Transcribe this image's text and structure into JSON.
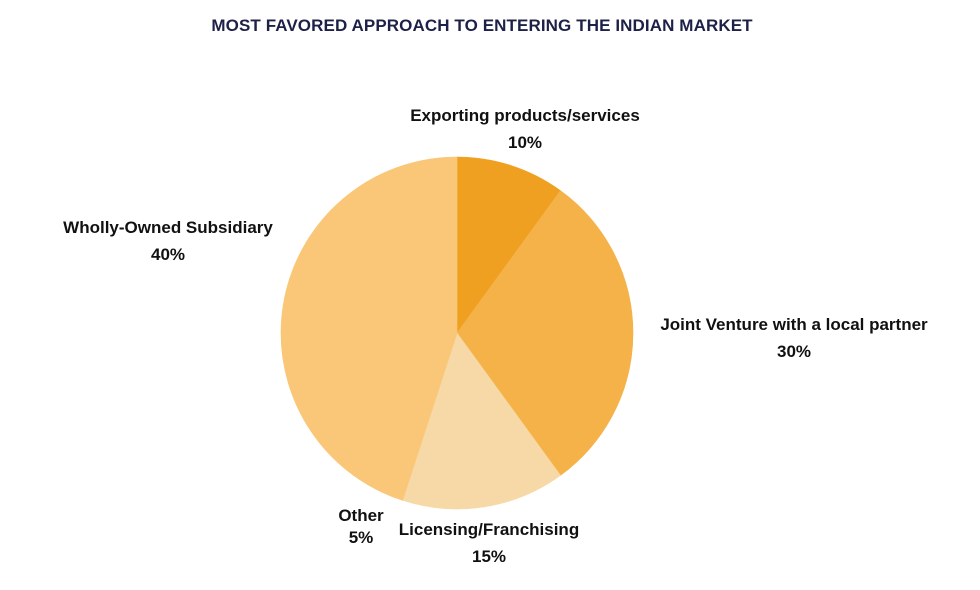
{
  "chart_data": {
    "type": "pie",
    "title": "MOST FAVORED APPROACH TO ENTERING THE INDIAN MARKET",
    "slices": [
      {
        "label": "Exporting products/services",
        "value": 10,
        "value_label": "10%",
        "color": "#f0a020"
      },
      {
        "label": "Joint Venture with a local partner",
        "value": 30,
        "value_label": "30%",
        "color": "#f5b248"
      },
      {
        "label": "Licensing/Franchising",
        "value": 15,
        "value_label": "15%",
        "color": "#f6d9a7"
      },
      {
        "label": "Other",
        "value": 5,
        "value_label": "5%",
        "color": "#f9c777"
      },
      {
        "label": "Wholly-Owned Subsidiary",
        "value": 40,
        "value_label": "40%",
        "color": "#f9c777"
      }
    ],
    "legend": "none"
  }
}
